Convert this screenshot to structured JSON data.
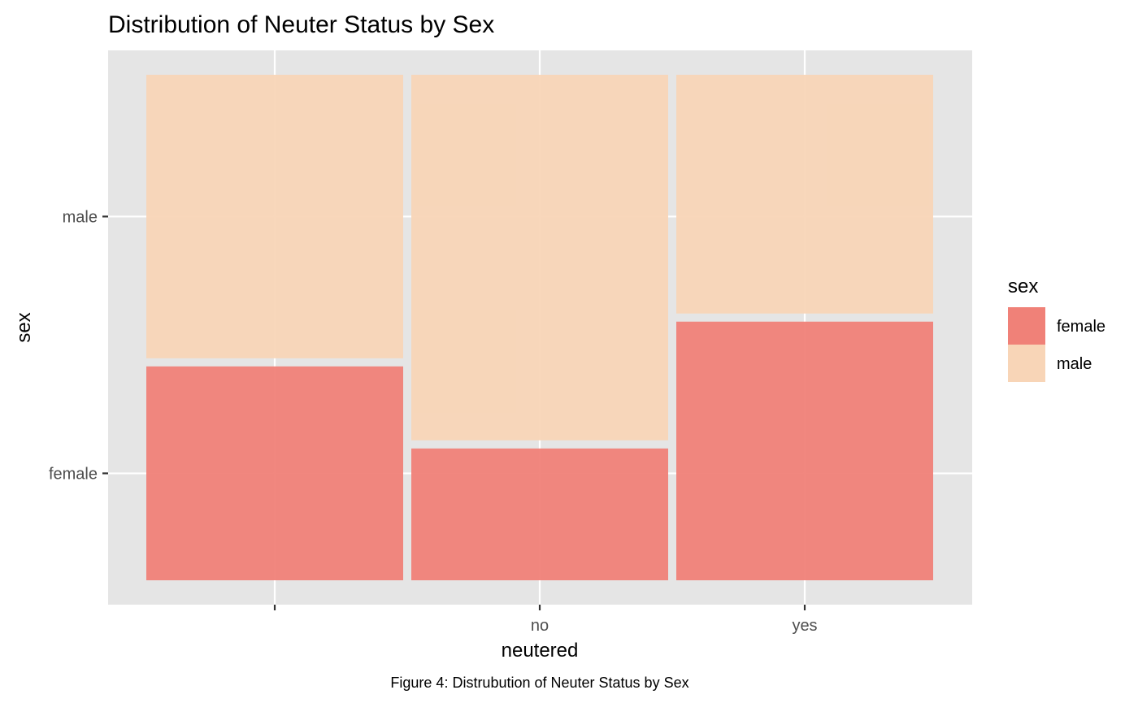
{
  "chart_data": {
    "type": "mosaic",
    "title": "Distribution of Neuter Status by Sex",
    "xlabel": "neutered",
    "ylabel": "sex",
    "x_categories": [
      "",
      "no",
      "yes"
    ],
    "x_widths": [
      1,
      1,
      1
    ],
    "y_categories": [
      "female",
      "male"
    ],
    "series": [
      {
        "name": "female",
        "values": [
          0.43,
          0.265,
          0.52
        ]
      },
      {
        "name": "male",
        "values": [
          0.57,
          0.735,
          0.48
        ]
      }
    ],
    "y_ticks": [
      "female",
      "male"
    ],
    "legend": {
      "title": "sex",
      "position": "right",
      "entries": [
        "female",
        "male"
      ]
    },
    "grid": true,
    "colors": {
      "female": "#F08178",
      "male": "#F8D5B7",
      "panel": "#E5E5E5",
      "grid": "#FFFFFF"
    }
  },
  "caption": "Figure 4: Distrubution of Neuter Status by Sex"
}
